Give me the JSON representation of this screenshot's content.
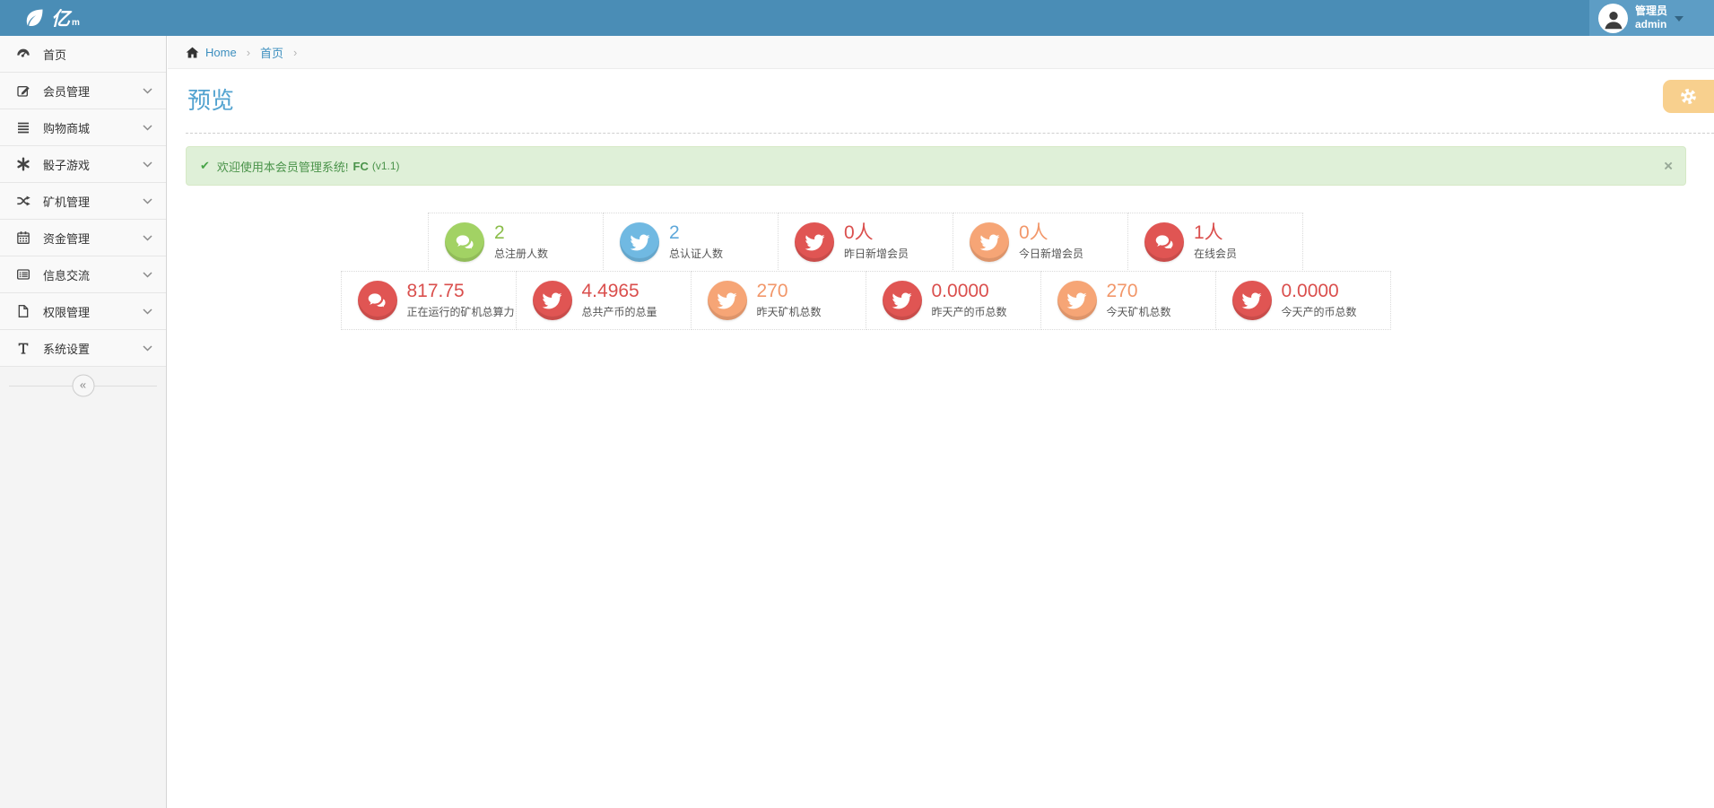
{
  "header": {
    "logo_text": "亿",
    "logo_sub": "m",
    "user_role": "管理员",
    "user_name": "admin"
  },
  "sidebar": {
    "items": [
      {
        "key": "home",
        "label": "首页",
        "icon": "gauge-icon",
        "expandable": false
      },
      {
        "key": "members",
        "label": "会员管理",
        "icon": "edit-icon",
        "expandable": true
      },
      {
        "key": "mall",
        "label": "购物商城",
        "icon": "list-icon",
        "expandable": true
      },
      {
        "key": "dice-game",
        "label": "骰子游戏",
        "icon": "asterisk-icon",
        "expandable": true
      },
      {
        "key": "miners",
        "label": "矿机管理",
        "icon": "shuffle-icon",
        "expandable": true
      },
      {
        "key": "funds",
        "label": "资金管理",
        "icon": "calendar-icon",
        "expandable": true
      },
      {
        "key": "messages",
        "label": "信息交流",
        "icon": "list-alt-icon",
        "expandable": true
      },
      {
        "key": "permissions",
        "label": "权限管理",
        "icon": "file-icon",
        "expandable": true
      },
      {
        "key": "settings",
        "label": "系统设置",
        "icon": "text-icon",
        "expandable": true
      }
    ],
    "collapse_glyph": "«"
  },
  "breadcrumb": {
    "home": "Home",
    "current": "首页",
    "separator": "›"
  },
  "page": {
    "title": "预览"
  },
  "alert": {
    "check_glyph": "✔",
    "message": "欢迎使用本会员管理系统!",
    "brand": "FC",
    "version": "(v1.1)",
    "close_glyph": "×"
  },
  "stats": {
    "row1": [
      {
        "value": "2",
        "label": "总注册人数",
        "icon": "comments-icon",
        "color": "green"
      },
      {
        "value": "2",
        "label": "总认证人数",
        "icon": "twitter-icon",
        "color": "blue"
      },
      {
        "value": "0人",
        "label": "昨日新增会员",
        "icon": "twitter-icon",
        "color": "red"
      },
      {
        "value": "0人",
        "label": "今日新增会员",
        "icon": "twitter-icon",
        "color": "orange"
      },
      {
        "value": "1人",
        "label": "在线会员",
        "icon": "comments-icon",
        "color": "red"
      }
    ],
    "row2": [
      {
        "value": "817.75",
        "label": "正在运行的矿机总算力",
        "icon": "comments-icon",
        "color": "red"
      },
      {
        "value": "4.4965",
        "label": "总共产币的总量",
        "icon": "twitter-icon",
        "color": "red"
      },
      {
        "value": "270",
        "label": "昨天矿机总数",
        "icon": "twitter-icon",
        "color": "orange"
      },
      {
        "value": "0.0000",
        "label": "昨天产的币总数",
        "icon": "twitter-icon",
        "color": "red"
      },
      {
        "value": "270",
        "label": "今天矿机总数",
        "icon": "twitter-icon",
        "color": "orange"
      },
      {
        "value": "0.0000",
        "label": "今天产的币总数",
        "icon": "twitter-icon",
        "color": "red"
      }
    ]
  },
  "colors": {
    "header_blue": "#4a8db6",
    "user_panel_blue": "#5d9dc5",
    "title_blue": "#53a3d0",
    "link_blue": "#3d8fbf",
    "alert_bg": "#dff0d8",
    "alert_text": "#4a934a",
    "settings_btn_bg": "#f8d08e",
    "green": {
      "circle": "#a2d264",
      "num": "#8bbd4a"
    },
    "blue": {
      "circle": "#70b9e2",
      "num": "#5fa8da"
    },
    "red": {
      "circle": "#e05553",
      "num": "#da4f4d"
    },
    "orange": {
      "circle": "#f6a576",
      "num": "#f2976a"
    }
  }
}
